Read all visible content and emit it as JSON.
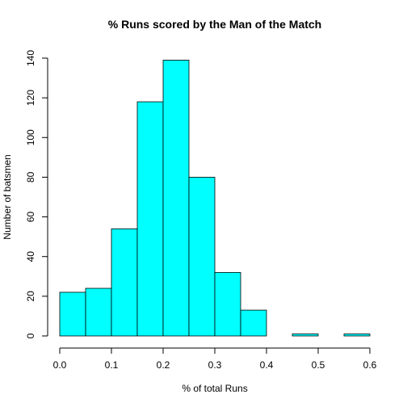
{
  "chart_data": {
    "type": "bar",
    "title": "% Runs scored by the Man of the Match",
    "xlabel": "% of total Runs",
    "ylabel": "Number of batsmen",
    "bins": [
      {
        "from": 0.0,
        "to": 0.05,
        "count": 22
      },
      {
        "from": 0.05,
        "to": 0.1,
        "count": 24
      },
      {
        "from": 0.1,
        "to": 0.15,
        "count": 54
      },
      {
        "from": 0.15,
        "to": 0.2,
        "count": 118
      },
      {
        "from": 0.2,
        "to": 0.25,
        "count": 139
      },
      {
        "from": 0.25,
        "to": 0.3,
        "count": 80
      },
      {
        "from": 0.3,
        "to": 0.35,
        "count": 32
      },
      {
        "from": 0.35,
        "to": 0.4,
        "count": 13
      },
      {
        "from": 0.4,
        "to": 0.45,
        "count": 0
      },
      {
        "from": 0.45,
        "to": 0.5,
        "count": 1
      },
      {
        "from": 0.5,
        "to": 0.55,
        "count": 0
      },
      {
        "from": 0.55,
        "to": 0.6,
        "count": 1
      }
    ],
    "xlim": [
      0.0,
      0.6
    ],
    "ylim": [
      0,
      140
    ],
    "x_ticks": [
      "0.0",
      "0.1",
      "0.2",
      "0.3",
      "0.4",
      "0.5",
      "0.6"
    ],
    "y_ticks": [
      "0",
      "20",
      "40",
      "60",
      "80",
      "100",
      "120",
      "140"
    ],
    "bar_color": "#00FFFF",
    "grid": false
  }
}
